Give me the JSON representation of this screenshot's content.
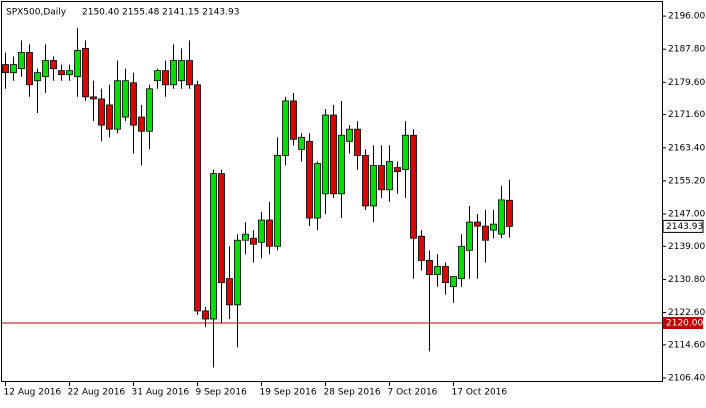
{
  "chart_data": {
    "type": "candlestick",
    "title": "SPX500,Daily",
    "header": "2150.40 2155.48 2141.15 2143.93",
    "categories": [
      "12 Aug 2016",
      null,
      null,
      null,
      null,
      null,
      null,
      null,
      "22 Aug 2016",
      null,
      null,
      null,
      null,
      null,
      null,
      null,
      "31 Aug 2016",
      null,
      null,
      null,
      null,
      null,
      null,
      null,
      "9 Sep 2016",
      null,
      null,
      null,
      null,
      null,
      null,
      null,
      "19 Sep 2016",
      null,
      null,
      null,
      null,
      null,
      null,
      null,
      "28 Sep 2016",
      null,
      null,
      null,
      null,
      null,
      null,
      null,
      "7 Oct 2016",
      null,
      null,
      null,
      null,
      null,
      null,
      null,
      "17 Oct 2016",
      null,
      null,
      null,
      null,
      null,
      null,
      null
    ],
    "open": [
      2184,
      2182,
      2183,
      2187,
      2180,
      2181,
      2185,
      2182.5,
      2181.5,
      2181,
      2188,
      2176,
      2175.5,
      2174,
      2168,
      2171,
      2179.5,
      2171,
      2167.5,
      2180,
      2182.5,
      2179,
      2180,
      2185,
      2179,
      2123,
      2121,
      2157,
      2131,
      2124.5,
      2140.5,
      2141,
      2140,
      2145.5,
      2139,
      2161.5,
      2175,
      2163,
      2165,
      2146,
      2152,
      2171.5,
      2152,
      2165,
      2168,
      2161.5,
      2149,
      2159,
      2153,
      2158.5,
      2158,
      2166.5,
      2141.5,
      2135.5,
      2132,
      2134,
      2129,
      2131,
      2138,
      2145,
      2144,
      2143,
      2142,
      2150.4
    ],
    "high": [
      2187,
      2186,
      2190,
      2189,
      2183,
      2189,
      2186,
      2184,
      2184,
      2193,
      2190,
      2180,
      2178,
      2179,
      2185,
      2183,
      2182,
      2174,
      2179,
      2183,
      2185,
      2189,
      2188,
      2190,
      2180,
      2124,
      2158,
      2158,
      2139,
      2142,
      2145,
      2143,
      2147.5,
      2150,
      2166,
      2176,
      2177,
      2167,
      2167,
      2160,
      2173,
      2174,
      2175,
      2169,
      2170,
      2163,
      2164,
      2164,
      2164,
      2160,
      2170,
      2168,
      2143,
      2138,
      2137,
      2135,
      2131,
      2142,
      2149,
      2147,
      2148,
      2148,
      2154,
      2155.48
    ],
    "low": [
      2178,
      2180,
      2181,
      2176,
      2172,
      2177,
      2180,
      2180,
      2180,
      2176,
      2175,
      2170,
      2165,
      2166,
      2167,
      2170,
      2162,
      2159,
      2163,
      2178,
      2176,
      2178,
      2178,
      2178,
      2122,
      2119,
      2109,
      2120,
      2121,
      2114,
      2137,
      2135,
      2136,
      2137,
      2138,
      2159,
      2164,
      2160,
      2144,
      2143,
      2147,
      2151,
      2146,
      2162,
      2158,
      2148,
      2145,
      2151,
      2150,
      2152,
      2151,
      2131,
      2133,
      2113,
      2129,
      2127,
      2125,
      2129,
      2131,
      2131,
      2135,
      2141,
      2141,
      2141.15
    ],
    "close": [
      2182,
      2184,
      2187,
      2179,
      2182,
      2185,
      2183,
      2181.5,
      2182.5,
      2187.5,
      2176,
      2175.5,
      2169,
      2168,
      2180,
      2180,
      2169,
      2167.5,
      2178,
      2182.5,
      2179,
      2185,
      2185,
      2179,
      2123,
      2121,
      2157,
      2130,
      2124.5,
      2140.5,
      2142,
      2139.5,
      2145.5,
      2139,
      2161.5,
      2175,
      2165.5,
      2166,
      2146,
      2159.5,
      2171.5,
      2152,
      2166.5,
      2168,
      2161.5,
      2149,
      2159,
      2153,
      2160,
      2157.5,
      2166.5,
      2141,
      2135.5,
      2132,
      2134,
      2130,
      2131.5,
      2139,
      2145,
      2144,
      2140.5,
      2144.5,
      2150.5,
      2143.93
    ],
    "up_color": "#00e000",
    "down_color": "#e00000",
    "ylim": [
      2105.4,
      2199.0
    ],
    "yticks": [
      {
        "value": 2196,
        "label": "2196.00"
      },
      {
        "value": 2187.8,
        "label": "2187.80"
      },
      {
        "value": 2179.6,
        "label": "2179.60"
      },
      {
        "value": 2171.6,
        "label": "2171.60"
      },
      {
        "value": 2163.4,
        "label": "2163.40"
      },
      {
        "value": 2155.2,
        "label": "2155.20"
      },
      {
        "value": 2147,
        "label": "2147.00"
      },
      {
        "value": 2139,
        "label": "2139.00"
      },
      {
        "value": 2130.8,
        "label": "2130.80"
      },
      {
        "value": 2122.6,
        "label": "2122.60"
      },
      {
        "value": 2114.6,
        "label": "2114.60"
      },
      {
        "value": 2106.4,
        "label": "2106.40"
      }
    ],
    "hline": {
      "value": 2120,
      "label": "2120.00",
      "color": "#c00000"
    },
    "last_price": {
      "value": 2143.93,
      "label": "2143.93"
    }
  }
}
